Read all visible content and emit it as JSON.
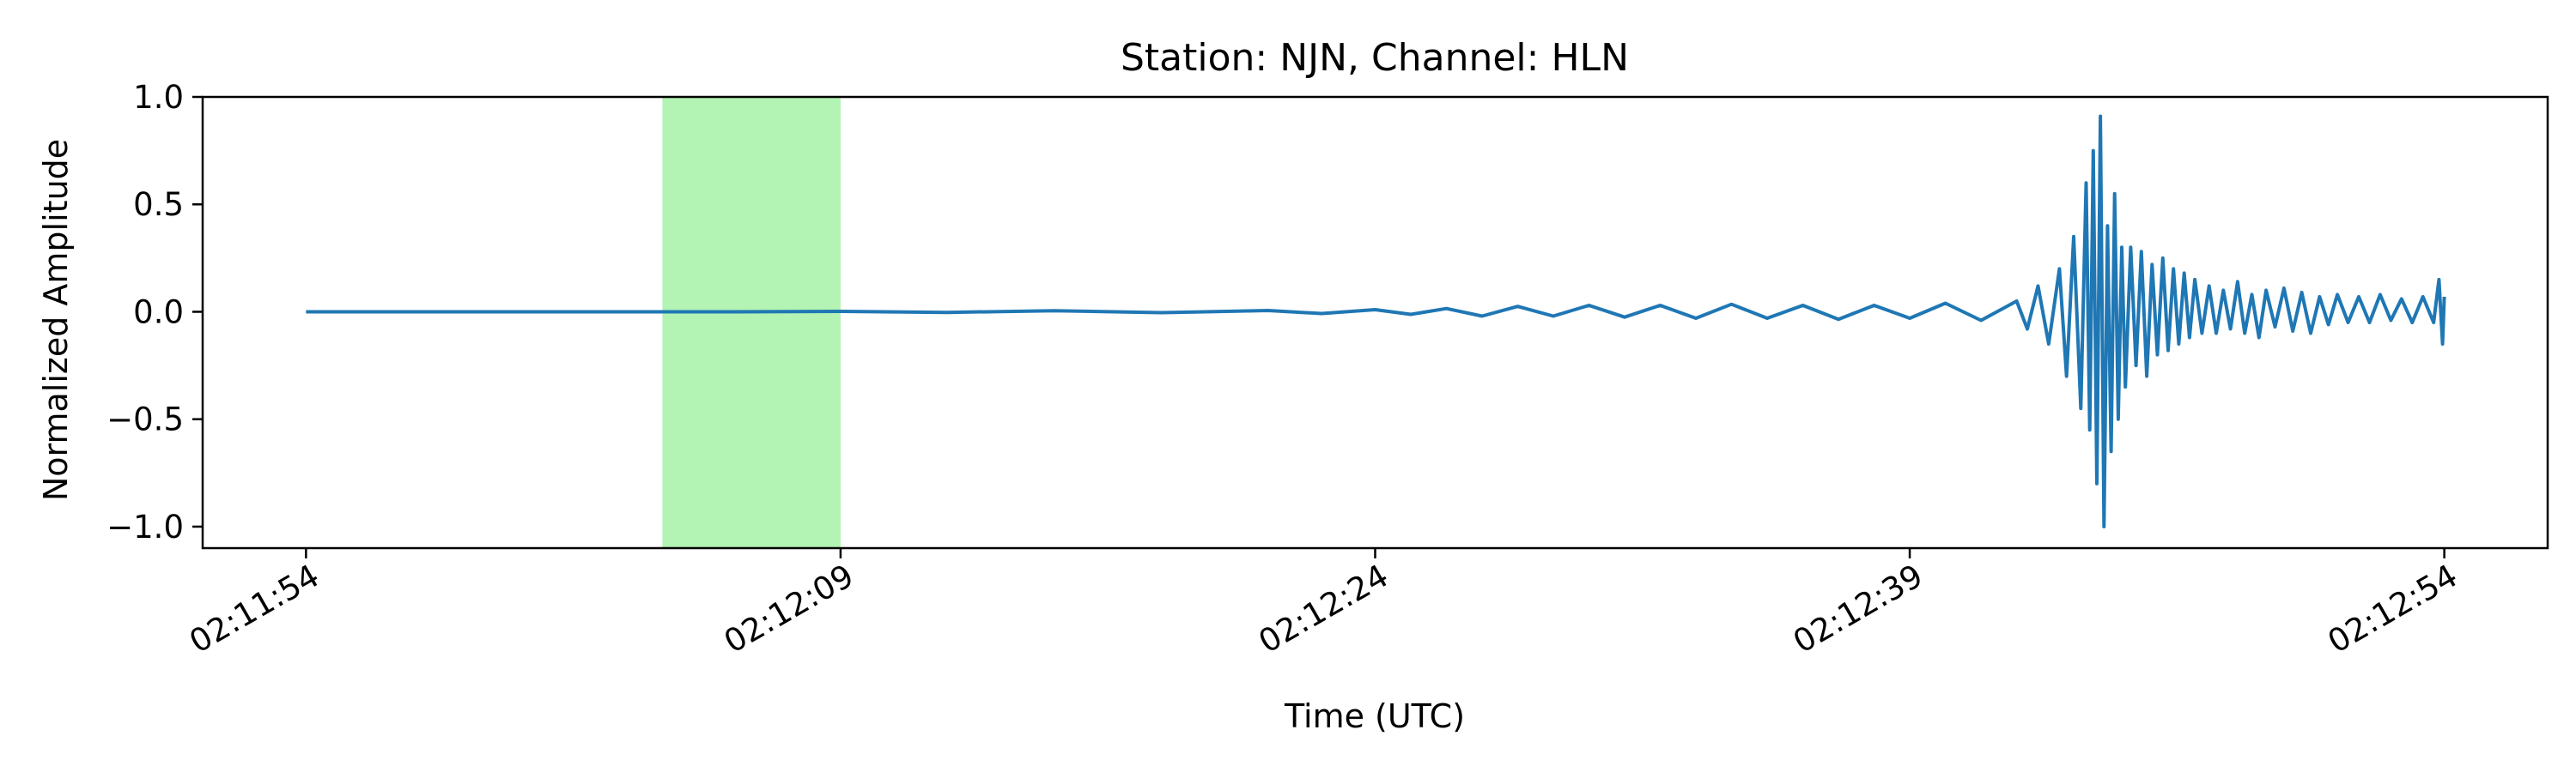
{
  "chart_data": {
    "type": "line",
    "title": "Station: NJN, Channel: HLN",
    "xlabel": "Time (UTC)",
    "ylabel": "Normalized Amplitude",
    "x_ticks": [
      "02:11:54",
      "02:12:09",
      "02:12:24",
      "02:12:39",
      "02:12:54"
    ],
    "x_tick_seconds": [
      0,
      15,
      30,
      45,
      60
    ],
    "y_ticks": [
      1.0,
      0.5,
      0.0,
      -0.5,
      -1.0
    ],
    "y_tick_labels": [
      "1.0",
      "0.5",
      "0.0",
      "−0.5",
      "−1.0"
    ],
    "xlim": [
      -2.9,
      62.9
    ],
    "ylim": [
      -1.1,
      1.0
    ],
    "grid": false,
    "highlight_window": {
      "start": 10.0,
      "end": 15.0,
      "color": "#b3f3b3"
    },
    "series": [
      {
        "color": "#1f77b4",
        "points": [
          [
            0,
            0.0
          ],
          [
            3,
            0.0
          ],
          [
            6,
            0.0
          ],
          [
            9,
            0.0
          ],
          [
            12,
            0.0
          ],
          [
            15,
            0.002
          ],
          [
            18,
            -0.003
          ],
          [
            21,
            0.005
          ],
          [
            24,
            -0.004
          ],
          [
            27,
            0.006
          ],
          [
            28.5,
            -0.008
          ],
          [
            30,
            0.01
          ],
          [
            31,
            -0.012
          ],
          [
            32,
            0.015
          ],
          [
            33,
            -0.02
          ],
          [
            34,
            0.025
          ],
          [
            35,
            -0.02
          ],
          [
            36,
            0.03
          ],
          [
            37,
            -0.025
          ],
          [
            38,
            0.03
          ],
          [
            39,
            -0.03
          ],
          [
            40,
            0.035
          ],
          [
            41,
            -0.03
          ],
          [
            42,
            0.03
          ],
          [
            43,
            -0.035
          ],
          [
            44,
            0.03
          ],
          [
            45,
            -0.03
          ],
          [
            46,
            0.04
          ],
          [
            47,
            -0.04
          ],
          [
            48.0,
            0.05
          ],
          [
            48.3,
            -0.08
          ],
          [
            48.6,
            0.12
          ],
          [
            48.9,
            -0.15
          ],
          [
            49.2,
            0.2
          ],
          [
            49.4,
            -0.3
          ],
          [
            49.6,
            0.35
          ],
          [
            49.8,
            -0.45
          ],
          [
            49.95,
            0.6
          ],
          [
            50.05,
            -0.55
          ],
          [
            50.15,
            0.75
          ],
          [
            50.25,
            -0.8
          ],
          [
            50.35,
            0.91
          ],
          [
            50.45,
            -1.0
          ],
          [
            50.55,
            0.4
          ],
          [
            50.65,
            -0.65
          ],
          [
            50.75,
            0.55
          ],
          [
            50.85,
            -0.5
          ],
          [
            50.95,
            0.3
          ],
          [
            51.05,
            -0.35
          ],
          [
            51.2,
            0.3
          ],
          [
            51.35,
            -0.25
          ],
          [
            51.5,
            0.28
          ],
          [
            51.65,
            -0.3
          ],
          [
            51.8,
            0.22
          ],
          [
            51.95,
            -0.2
          ],
          [
            52.1,
            0.25
          ],
          [
            52.25,
            -0.18
          ],
          [
            52.4,
            0.2
          ],
          [
            52.55,
            -0.15
          ],
          [
            52.7,
            0.18
          ],
          [
            52.85,
            -0.12
          ],
          [
            53.0,
            0.15
          ],
          [
            53.2,
            -0.1
          ],
          [
            53.4,
            0.12
          ],
          [
            53.6,
            -0.1
          ],
          [
            53.8,
            0.1
          ],
          [
            54.0,
            -0.08
          ],
          [
            54.2,
            0.14
          ],
          [
            54.4,
            -0.1
          ],
          [
            54.6,
            0.08
          ],
          [
            54.8,
            -0.12
          ],
          [
            55.0,
            0.1
          ],
          [
            55.25,
            -0.07
          ],
          [
            55.5,
            0.11
          ],
          [
            55.75,
            -0.09
          ],
          [
            56.0,
            0.09
          ],
          [
            56.25,
            -0.1
          ],
          [
            56.5,
            0.07
          ],
          [
            56.75,
            -0.06
          ],
          [
            57.0,
            0.08
          ],
          [
            57.3,
            -0.05
          ],
          [
            57.6,
            0.07
          ],
          [
            57.9,
            -0.05
          ],
          [
            58.2,
            0.08
          ],
          [
            58.5,
            -0.04
          ],
          [
            58.8,
            0.06
          ],
          [
            59.1,
            -0.05
          ],
          [
            59.4,
            0.07
          ],
          [
            59.7,
            -0.05
          ],
          [
            59.85,
            0.15
          ],
          [
            59.95,
            -0.15
          ],
          [
            60.0,
            0.07
          ]
        ]
      }
    ]
  }
}
